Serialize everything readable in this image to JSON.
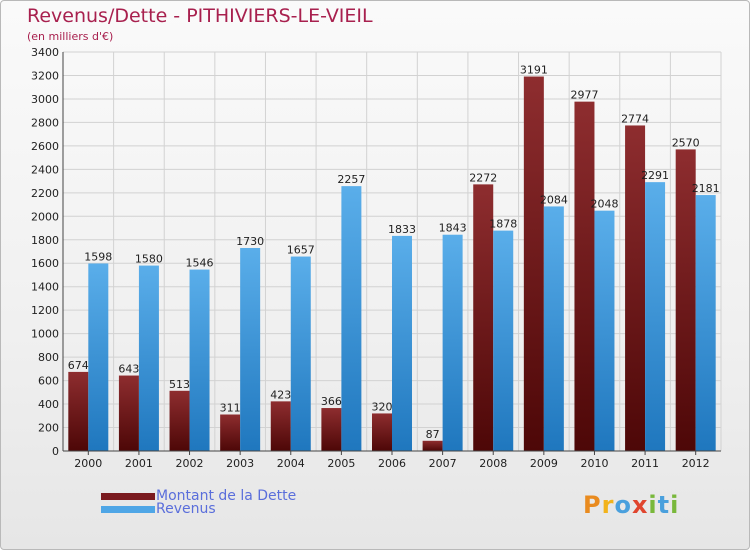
{
  "title": "Revenus/Dette - PITHIVIERS-LE-VIEIL",
  "subtitle": "(en milliers d'€)",
  "chart_data": {
    "type": "bar",
    "categories": [
      "2000",
      "2001",
      "2002",
      "2003",
      "2004",
      "2005",
      "2006",
      "2007",
      "2008",
      "2009",
      "2010",
      "2011",
      "2012"
    ],
    "series": [
      {
        "name": "Montant de la Dette",
        "color": "#7a1a1f",
        "values": [
          674,
          643,
          513,
          311,
          423,
          366,
          320,
          87,
          2272,
          3191,
          2977,
          2774,
          2570
        ]
      },
      {
        "name": "Revenus",
        "color": "#4fa6e6",
        "values": [
          1598,
          1580,
          1546,
          1730,
          1657,
          2257,
          1833,
          1843,
          1878,
          2084,
          2048,
          2291,
          2181
        ]
      }
    ],
    "ylim": [
      0,
      3400
    ],
    "yticks": [
      0,
      200,
      400,
      600,
      800,
      1000,
      1200,
      1400,
      1600,
      1800,
      2000,
      2200,
      2400,
      2600,
      2800,
      3000,
      3200,
      3400
    ],
    "grid": true,
    "legend_position": "bottom-left"
  },
  "legend": {
    "items": [
      {
        "label": "Montant de la Dette",
        "color": "#7a1a1f"
      },
      {
        "label": "Revenus",
        "color": "#4fa6e6"
      }
    ]
  },
  "logo": {
    "letters": [
      "P",
      "r",
      "o",
      "x",
      "i",
      "t",
      "i"
    ],
    "colors": [
      "#e98b1f",
      "#f2b31b",
      "#4aa0dd",
      "#e0452e",
      "#79b83b",
      "#4aa0dd",
      "#79b83b"
    ]
  }
}
